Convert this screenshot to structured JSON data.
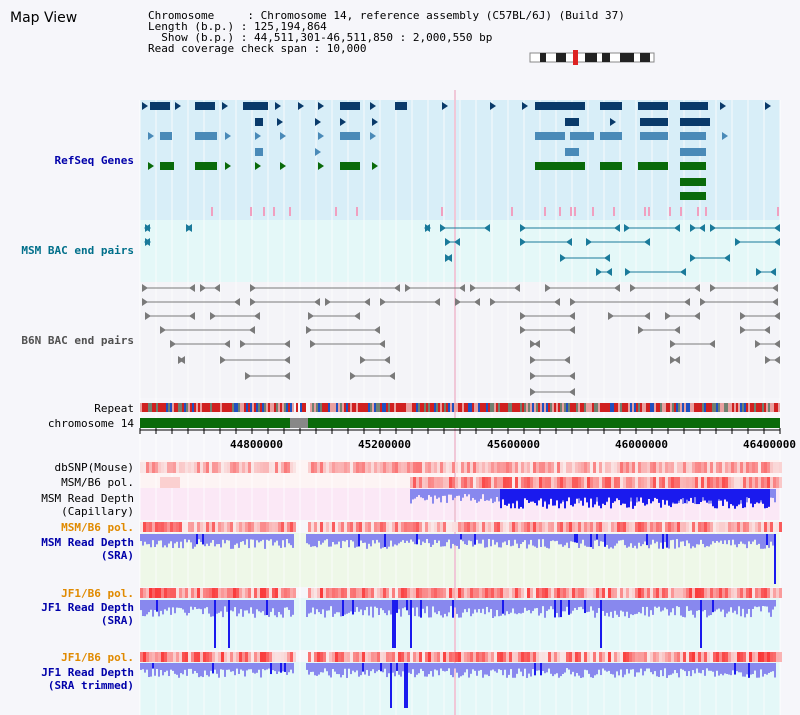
{
  "page": {
    "title": "Map View"
  },
  "info": {
    "chromosome_line": "Chromosome     : Chromosome 14, reference assembly (C57BL/6J) (Build 37)",
    "length_line": "Length (b.p.) : 125,194,864",
    "show_line": "  Show (b.p.) : 44,511,301-46,511,850 : 2,000,550 bp",
    "coverage_line": "Read coverage check span : 10,000"
  },
  "tracks": {
    "refseq": "RefSeq Genes",
    "msm_bac": "MSM BAC end pairs",
    "b6n_bac": "B6N BAC end pairs",
    "repeat": "Repeat",
    "chromosome": "chromosome 14",
    "dbsnp": "dbSNP(Mouse)",
    "msm_b6_pol_1": "MSM/B6 pol.",
    "msm_read_depth_cap_1": "MSM Read Depth",
    "msm_read_depth_cap_2": "(Capillary)",
    "msm_b6_pol_2": "MSM/B6 pol.",
    "msm_read_depth_sra_1": "MSM Read Depth",
    "msm_read_depth_sra_2": "(SRA)",
    "jf1_b6_pol_1": "JF1/B6 pol.",
    "jf1_read_depth_sra_1": "JF1 Read Depth",
    "jf1_read_depth_sra_2": "(SRA)",
    "jf1_b6_pol_2": "JF1/B6 pol.",
    "jf1_read_depth_trim_1": "JF1 Read Depth",
    "jf1_read_depth_trim_2": "(SRA trimmed)"
  },
  "axis": {
    "ticks": [
      "44800000",
      "45200000",
      "45600000",
      "46000000",
      "46400000"
    ]
  },
  "colors": {
    "refseq_dark": "#0a3a6a",
    "refseq_mid": "#4a8ab8",
    "refseq_green": "#0a6a0a",
    "msm_bac": "#1a7a9a",
    "b6n_bac": "#7a7a7a",
    "read_depth_dark": "#1a1aee",
    "read_depth_light": "#8888ee"
  }
}
